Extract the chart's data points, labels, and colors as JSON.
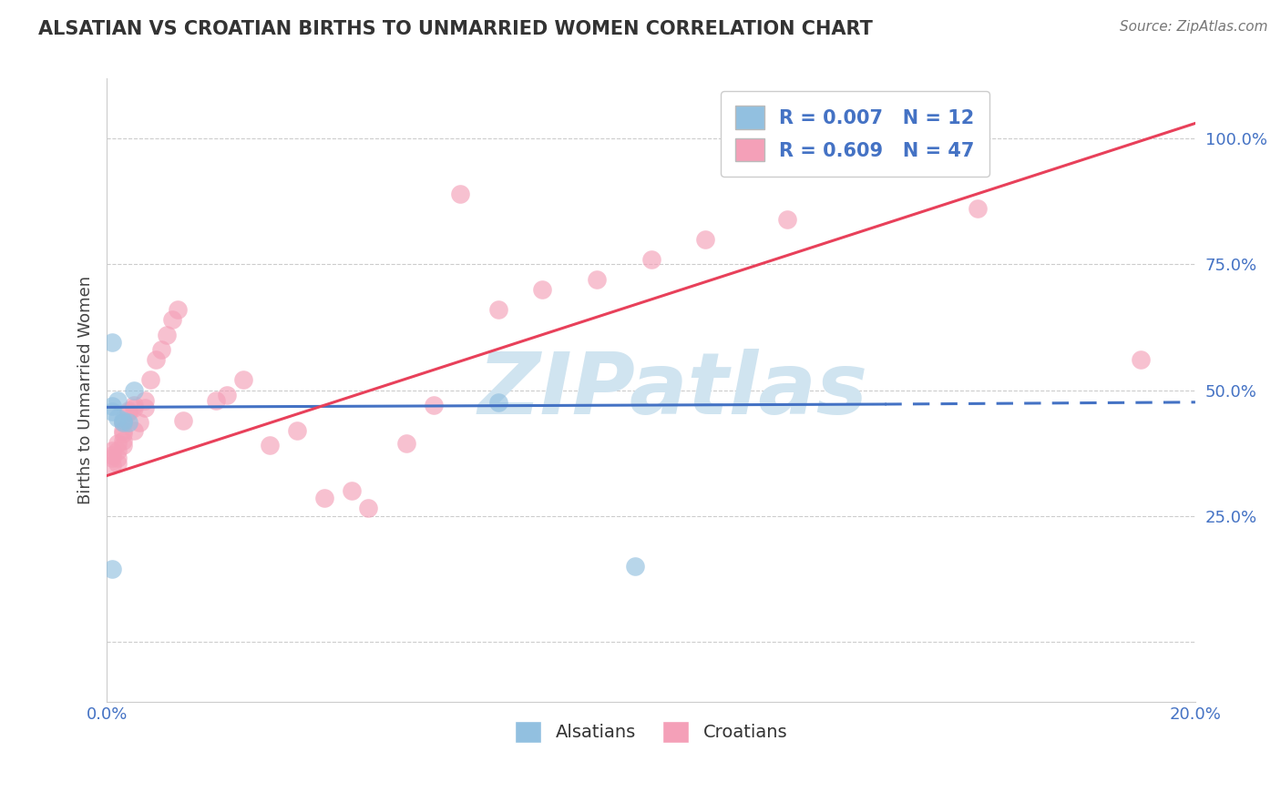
{
  "title": "ALSATIAN VS CROATIAN BIRTHS TO UNMARRIED WOMEN CORRELATION CHART",
  "source": "Source: ZipAtlas.com",
  "ylabel": "Births to Unmarried Women",
  "xlim": [
    0.0,
    0.2
  ],
  "ylim": [
    -0.12,
    1.12
  ],
  "alsatian_R": 0.007,
  "alsatian_N": 12,
  "croatian_R": 0.609,
  "croatian_N": 47,
  "alsatian_color": "#92C0E0",
  "croatian_color": "#F4A0B8",
  "alsatian_line_color": "#4472C4",
  "croatian_line_color": "#E8405A",
  "watermark": "ZIPatlas",
  "watermark_color": "#D0E4F0",
  "background_color": "#FFFFFF",
  "grid_color": "#CCCCCC",
  "tick_color": "#4472C4",
  "alsatian_x": [
    0.001,
    0.001,
    0.002,
    0.002,
    0.003,
    0.003,
    0.004,
    0.005,
    0.072,
    0.001,
    0.001,
    0.097
  ],
  "alsatian_y": [
    0.458,
    0.468,
    0.445,
    0.48,
    0.44,
    0.435,
    0.435,
    0.5,
    0.475,
    0.595,
    0.145,
    0.15
  ],
  "croatian_x": [
    0.001,
    0.001,
    0.001,
    0.001,
    0.002,
    0.002,
    0.002,
    0.002,
    0.003,
    0.003,
    0.003,
    0.003,
    0.003,
    0.004,
    0.004,
    0.005,
    0.005,
    0.005,
    0.006,
    0.007,
    0.007,
    0.008,
    0.009,
    0.01,
    0.011,
    0.012,
    0.013,
    0.014,
    0.02,
    0.022,
    0.025,
    0.03,
    0.035,
    0.04,
    0.045,
    0.048,
    0.055,
    0.06,
    0.065,
    0.072,
    0.08,
    0.09,
    0.1,
    0.11,
    0.125,
    0.16,
    0.19
  ],
  "croatian_y": [
    0.37,
    0.365,
    0.35,
    0.38,
    0.38,
    0.365,
    0.355,
    0.395,
    0.4,
    0.39,
    0.42,
    0.435,
    0.415,
    0.455,
    0.46,
    0.47,
    0.465,
    0.42,
    0.435,
    0.48,
    0.465,
    0.52,
    0.56,
    0.58,
    0.61,
    0.64,
    0.66,
    0.44,
    0.48,
    0.49,
    0.52,
    0.39,
    0.42,
    0.285,
    0.3,
    0.265,
    0.395,
    0.47,
    0.89,
    0.66,
    0.7,
    0.72,
    0.76,
    0.8,
    0.84,
    0.86,
    0.56
  ],
  "blue_line_x": [
    0.0,
    0.143
  ],
  "blue_line_y": [
    0.466,
    0.472
  ],
  "pink_line_x": [
    0.0,
    0.2
  ],
  "pink_line_y": [
    0.33,
    1.03
  ]
}
